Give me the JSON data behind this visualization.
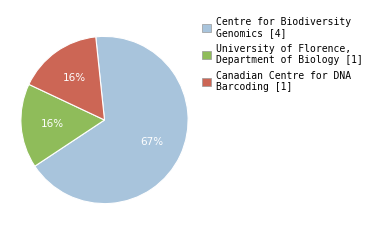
{
  "labels": [
    "Centre for Biodiversity\nGenomics [4]",
    "University of Florence,\nDepartment of Biology [1]",
    "Canadian Centre for DNA\nBarcoding [1]"
  ],
  "values": [
    66,
    16,
    16
  ],
  "colors": [
    "#a8c4dc",
    "#8fbc5a",
    "#cc6655"
  ],
  "background_color": "#ffffff",
  "startangle": 96,
  "pctdistance": 0.62,
  "legend_fontsize": 7.0,
  "pct_fontsize": 7.5
}
